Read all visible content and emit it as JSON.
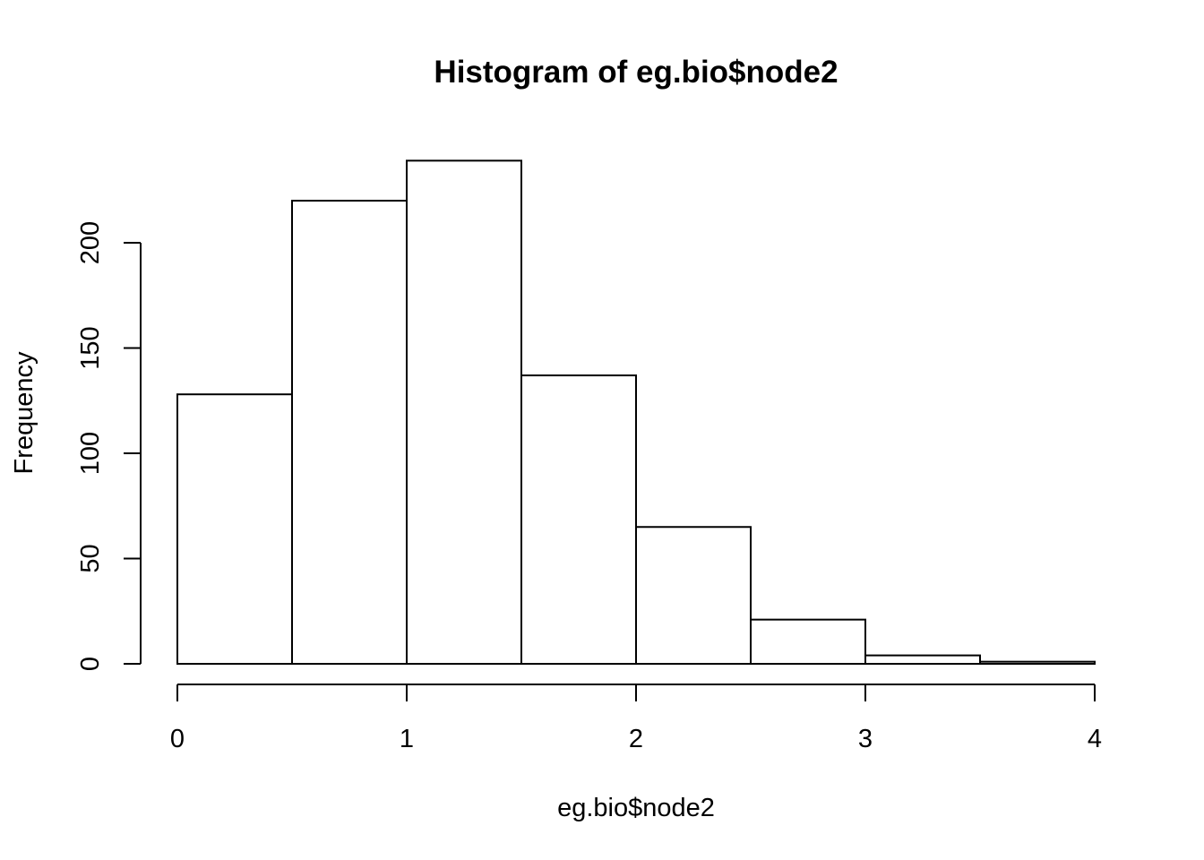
{
  "chart_data": {
    "type": "bar",
    "subtype": "histogram",
    "title": "Histogram of eg.bio$node2",
    "xlabel": "eg.bio$node2",
    "ylabel": "Frequency",
    "bins": [
      {
        "x0": 0.0,
        "x1": 0.5,
        "count": 128
      },
      {
        "x0": 0.5,
        "x1": 1.0,
        "count": 220
      },
      {
        "x0": 1.0,
        "x1": 1.5,
        "count": 239
      },
      {
        "x0": 1.5,
        "x1": 2.0,
        "count": 137
      },
      {
        "x0": 2.0,
        "x1": 2.5,
        "count": 65
      },
      {
        "x0": 2.5,
        "x1": 3.0,
        "count": 21
      },
      {
        "x0": 3.0,
        "x1": 3.5,
        "count": 4
      },
      {
        "x0": 3.5,
        "x1": 4.0,
        "count": 1
      }
    ],
    "x_ticks": [
      0,
      1,
      2,
      3,
      4
    ],
    "y_ticks": [
      0,
      50,
      100,
      150,
      200
    ],
    "xlim": [
      0,
      4
    ],
    "ylim": [
      0,
      239
    ],
    "grid": false,
    "legend": "none",
    "colors": {
      "bar_fill": "#ffffff",
      "bar_stroke": "#000000"
    }
  }
}
